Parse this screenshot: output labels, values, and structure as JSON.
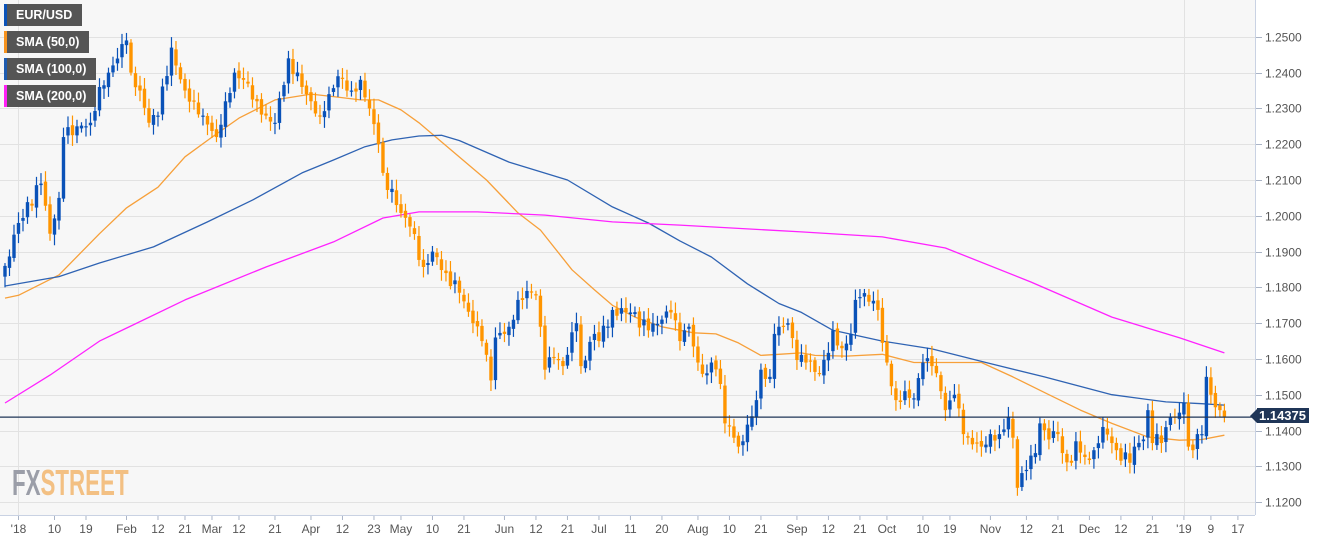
{
  "legend": [
    {
      "label": "EUR/USD",
      "color": "#0a52b8"
    },
    {
      "label": "SMA (50,0)",
      "color": "#f7931e"
    },
    {
      "label": "SMA (100,0)",
      "color": "#1e5bb0"
    },
    {
      "label": "SMA (200,0)",
      "color": "#ff1ff5"
    }
  ],
  "logo": {
    "part1": "FX",
    "part2": "STREET"
  },
  "current_price_label": "1.14375",
  "colors": {
    "up": "#0a52b8",
    "down": "#ff9500",
    "sma50": "#f7a03a",
    "sma100": "#2f63b3",
    "sma200": "#ff22ff",
    "price_line": "#1f3557",
    "grid": "#e2e2e2",
    "plot_bg": "#f7f7f7"
  },
  "chart_data": {
    "type": "candlestick",
    "title": "EUR/USD",
    "ylim": [
      1.1164,
      1.2603
    ],
    "xlim": [
      -1.11,
      277.8
    ],
    "y_ticks": [
      "1.1200",
      "1.1300",
      "1.1400",
      "1.1500",
      "1.1600",
      "1.1700",
      "1.1800",
      "1.1900",
      "1.2000",
      "1.2100",
      "1.2200",
      "1.2300",
      "1.2400",
      "1.2500"
    ],
    "x_ticks": [
      [
        "'18",
        3
      ],
      [
        "10",
        11
      ],
      [
        "19",
        18
      ],
      [
        "Feb",
        27
      ],
      [
        "12",
        34
      ],
      [
        "21",
        40
      ],
      [
        "Mar",
        46
      ],
      [
        "12",
        52
      ],
      [
        "21",
        60
      ],
      [
        "Apr",
        68
      ],
      [
        "12",
        75
      ],
      [
        "23",
        82
      ],
      [
        "May",
        88
      ],
      [
        "10",
        95
      ],
      [
        "21",
        102
      ],
      [
        "Jun",
        111
      ],
      [
        "12",
        118
      ],
      [
        "21",
        125
      ],
      [
        "Jul",
        132
      ],
      [
        "11",
        139
      ],
      [
        "20",
        146
      ],
      [
        "Aug",
        154
      ],
      [
        "10",
        161
      ],
      [
        "21",
        168
      ],
      [
        "Sep",
        176
      ],
      [
        "12",
        183
      ],
      [
        "21",
        190
      ],
      [
        "Oct",
        196
      ],
      [
        "10",
        204
      ],
      [
        "19",
        210
      ],
      [
        "Nov",
        219
      ],
      [
        "12",
        227
      ],
      [
        "21",
        234
      ],
      [
        "Dec",
        241
      ],
      [
        "12",
        248
      ],
      [
        "21",
        255
      ],
      [
        "'19",
        262
      ],
      [
        "9",
        268
      ],
      [
        "17",
        274
      ]
    ],
    "year_gridlines": [
      3,
      262
    ],
    "candle_count": 272,
    "current_price": 1.14375,
    "close_path": [
      [
        0,
        1.186
      ],
      [
        3,
        1.198
      ],
      [
        8,
        1.209
      ],
      [
        10,
        1.195
      ],
      [
        12,
        1.205
      ],
      [
        13,
        1.222
      ],
      [
        16,
        1.225
      ],
      [
        19,
        1.226
      ],
      [
        21,
        1.236
      ],
      [
        23,
        1.24
      ],
      [
        27,
        1.249
      ],
      [
        28,
        1.24
      ],
      [
        30,
        1.235
      ],
      [
        32,
        1.226
      ],
      [
        34,
        1.228
      ],
      [
        37,
        1.247
      ],
      [
        38,
        1.242
      ],
      [
        40,
        1.235
      ],
      [
        42,
        1.232
      ],
      [
        44,
        1.228
      ],
      [
        47,
        1.222
      ],
      [
        49,
        1.232
      ],
      [
        51,
        1.24
      ],
      [
        53,
        1.238
      ],
      [
        56,
        1.232
      ],
      [
        58,
        1.228
      ],
      [
        60,
        1.226
      ],
      [
        63,
        1.244
      ],
      [
        66,
        1.236
      ],
      [
        68,
        1.232
      ],
      [
        70,
        1.228
      ],
      [
        72,
        1.234
      ],
      [
        74,
        1.239
      ],
      [
        77,
        1.235
      ],
      [
        79,
        1.238
      ],
      [
        81,
        1.23
      ],
      [
        83,
        1.22
      ],
      [
        84,
        1.212
      ],
      [
        87,
        1.203
      ],
      [
        88,
        1.2008
      ],
      [
        90,
        1.197
      ],
      [
        93,
        1.1857
      ],
      [
        95,
        1.19
      ],
      [
        98,
        1.184
      ],
      [
        101,
        1.1785
      ],
      [
        104,
        1.17
      ],
      [
        106,
        1.165
      ],
      [
        108,
        1.154
      ],
      [
        109,
        1.166
      ],
      [
        112,
        1.169
      ],
      [
        114,
        1.1765
      ],
      [
        116,
        1.179
      ],
      [
        118,
        1.178
      ],
      [
        120,
        1.157
      ],
      [
        122,
        1.1605
      ],
      [
        124,
        1.158
      ],
      [
        127,
        1.17
      ],
      [
        128,
        1.158
      ],
      [
        131,
        1.167
      ],
      [
        132,
        1.165
      ],
      [
        135,
        1.1737
      ],
      [
        139,
        1.173
      ],
      [
        143,
        1.168
      ],
      [
        146,
        1.171
      ],
      [
        148,
        1.173
      ],
      [
        150,
        1.165
      ],
      [
        152,
        1.169
      ],
      [
        154,
        1.159
      ],
      [
        156,
        1.156
      ],
      [
        157,
        1.159
      ],
      [
        159,
        1.153
      ],
      [
        160,
        1.142
      ],
      [
        162,
        1.138
      ],
      [
        163,
        1.1355
      ],
      [
        164,
        1.137
      ],
      [
        166,
        1.144
      ],
      [
        167,
        1.1485
      ],
      [
        168,
        1.157
      ],
      [
        170,
        1.155
      ],
      [
        171,
        1.167
      ],
      [
        172,
        1.169
      ],
      [
        174,
        1.17
      ],
      [
        176,
        1.1597
      ],
      [
        178,
        1.159
      ],
      [
        181,
        1.156
      ],
      [
        183,
        1.1617
      ],
      [
        184,
        1.168
      ],
      [
        186,
        1.163
      ],
      [
        188,
        1.167
      ],
      [
        189,
        1.1765
      ],
      [
        190,
        1.1773
      ],
      [
        192,
        1.176
      ],
      [
        194,
        1.1737
      ],
      [
        195,
        1.1645
      ],
      [
        196,
        1.159
      ],
      [
        198,
        1.1485
      ],
      [
        200,
        1.151
      ],
      [
        202,
        1.149
      ],
      [
        204,
        1.159
      ],
      [
        206,
        1.158
      ],
      [
        208,
        1.151
      ],
      [
        209,
        1.1457
      ],
      [
        211,
        1.15
      ],
      [
        213,
        1.139
      ],
      [
        214,
        1.138
      ],
      [
        217,
        1.1355
      ],
      [
        219,
        1.139
      ],
      [
        221,
        1.139
      ],
      [
        223,
        1.1438
      ],
      [
        224,
        1.138
      ],
      [
        225,
        1.124
      ],
      [
        227,
        1.129
      ],
      [
        229,
        1.1337
      ],
      [
        230,
        1.142
      ],
      [
        232,
        1.1375
      ],
      [
        234,
        1.139
      ],
      [
        235,
        1.1337
      ],
      [
        237,
        1.131
      ],
      [
        238,
        1.137
      ],
      [
        240,
        1.1326
      ],
      [
        242,
        1.1345
      ],
      [
        244,
        1.141
      ],
      [
        246,
        1.1365
      ],
      [
        247,
        1.1345
      ],
      [
        250,
        1.131
      ],
      [
        251,
        1.1355
      ],
      [
        253,
        1.1375
      ],
      [
        254,
        1.1457
      ],
      [
        255,
        1.1365
      ],
      [
        256,
        1.139
      ],
      [
        257,
        1.1365
      ],
      [
        259,
        1.1438
      ],
      [
        261,
        1.145
      ],
      [
        262,
        1.1477
      ],
      [
        263,
        1.1355
      ],
      [
        264,
        1.1345
      ],
      [
        265,
        1.139
      ],
      [
        266,
        1.139
      ],
      [
        267,
        1.155
      ],
      [
        268,
        1.15
      ],
      [
        269,
        1.1465
      ],
      [
        270,
        1.1457
      ],
      [
        271,
        1.14375
      ]
    ],
    "series": [
      {
        "name": "SMA (50,0)",
        "points": [
          [
            0,
            1.177
          ],
          [
            3,
            1.1778
          ],
          [
            12,
            1.1835
          ],
          [
            21,
            1.195
          ],
          [
            27,
            1.2022
          ],
          [
            34,
            1.208
          ],
          [
            40,
            1.2165
          ],
          [
            46,
            1.222
          ],
          [
            52,
            1.2273
          ],
          [
            60,
            1.2324
          ],
          [
            68,
            1.234
          ],
          [
            73,
            1.2333
          ],
          [
            79,
            1.2324
          ],
          [
            83,
            1.2324
          ],
          [
            88,
            1.2296
          ],
          [
            92,
            1.226
          ],
          [
            107,
            1.21
          ],
          [
            114,
            1.2008
          ],
          [
            119,
            1.196
          ],
          [
            126,
            1.1849
          ],
          [
            131,
            1.1793
          ],
          [
            135,
            1.175
          ],
          [
            140,
            1.1717
          ],
          [
            146,
            1.169
          ],
          [
            153,
            1.1673
          ],
          [
            158,
            1.167
          ],
          [
            163,
            1.1645
          ],
          [
            168,
            1.161
          ],
          [
            172,
            1.1613
          ],
          [
            177,
            1.1617
          ],
          [
            180,
            1.161
          ],
          [
            187,
            1.1608
          ],
          [
            195,
            1.1613
          ],
          [
            202,
            1.159
          ],
          [
            209,
            1.159
          ],
          [
            217,
            1.159
          ],
          [
            224,
            1.155
          ],
          [
            232,
            1.15
          ],
          [
            239,
            1.1457
          ],
          [
            246,
            1.142
          ],
          [
            254,
            1.1382
          ],
          [
            261,
            1.1373
          ],
          [
            266,
            1.1375
          ],
          [
            271,
            1.1387
          ]
        ]
      },
      {
        "name": "SMA (100,0)",
        "points": [
          [
            0,
            1.1804
          ],
          [
            12,
            1.183
          ],
          [
            21,
            1.1868
          ],
          [
            33,
            1.1913
          ],
          [
            45,
            1.1983
          ],
          [
            55,
            1.2044
          ],
          [
            66,
            1.212
          ],
          [
            73,
            1.2156
          ],
          [
            80,
            1.2193
          ],
          [
            86,
            1.2212
          ],
          [
            92,
            1.2223
          ],
          [
            97,
            1.2225
          ],
          [
            101,
            1.221
          ],
          [
            112,
            1.215
          ],
          [
            125,
            1.21
          ],
          [
            135,
            1.2025
          ],
          [
            143,
            1.198
          ],
          [
            150,
            1.193
          ],
          [
            157,
            1.1885
          ],
          [
            165,
            1.181
          ],
          [
            172,
            1.1755
          ],
          [
            177,
            1.173
          ],
          [
            184,
            1.168
          ],
          [
            195,
            1.165
          ],
          [
            206,
            1.1628
          ],
          [
            218,
            1.159
          ],
          [
            231,
            1.155
          ],
          [
            246,
            1.15
          ],
          [
            258,
            1.148
          ],
          [
            266,
            1.1475
          ],
          [
            271,
            1.1471
          ]
        ]
      },
      {
        "name": "SMA (200,0)",
        "points": [
          [
            0,
            1.1477
          ],
          [
            10,
            1.1555
          ],
          [
            21,
            1.165
          ],
          [
            40,
            1.1765
          ],
          [
            58,
            1.1857
          ],
          [
            73,
            1.1927
          ],
          [
            84,
            1.1994
          ],
          [
            92,
            1.2011
          ],
          [
            105,
            1.2011
          ],
          [
            120,
            1.2002
          ],
          [
            135,
            1.1983
          ],
          [
            150,
            1.1974
          ],
          [
            177,
            1.1955
          ],
          [
            195,
            1.1941
          ],
          [
            209,
            1.191
          ],
          [
            228,
            1.1815
          ],
          [
            246,
            1.1717
          ],
          [
            261,
            1.1659
          ],
          [
            271,
            1.1617
          ]
        ]
      }
    ]
  }
}
